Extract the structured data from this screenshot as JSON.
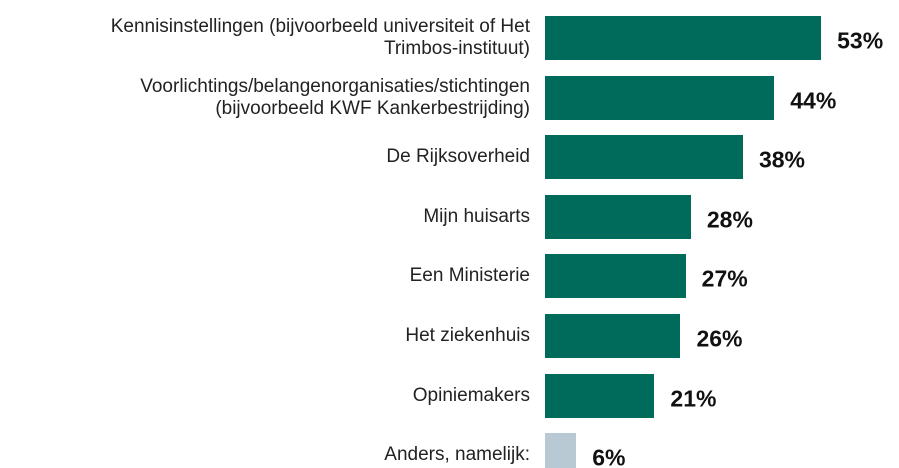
{
  "chart_data": {
    "type": "bar",
    "orientation": "horizontal",
    "categories": [
      "Kennisinstellingen (bijvoorbeeld universiteit of Het Trimbos-instituut)",
      "Voorlichtings/belangenorganisaties/stichtingen (bijvoorbeeld KWF Kankerbestrijding)",
      "De Rijksoverheid",
      "Mijn huisarts",
      "Een Ministerie",
      "Het ziekenhuis",
      "Opiniemakers",
      "Anders, namelijk:"
    ],
    "values": [
      53,
      44,
      38,
      28,
      27,
      26,
      21,
      6
    ],
    "value_labels": [
      "53%",
      "44%",
      "38%",
      "28%",
      "27%",
      "26%",
      "21%",
      "6%"
    ],
    "colors": [
      "#006b5a",
      "#006b5a",
      "#006b5a",
      "#006b5a",
      "#006b5a",
      "#006b5a",
      "#006b5a",
      "#b8c9d4"
    ]
  }
}
